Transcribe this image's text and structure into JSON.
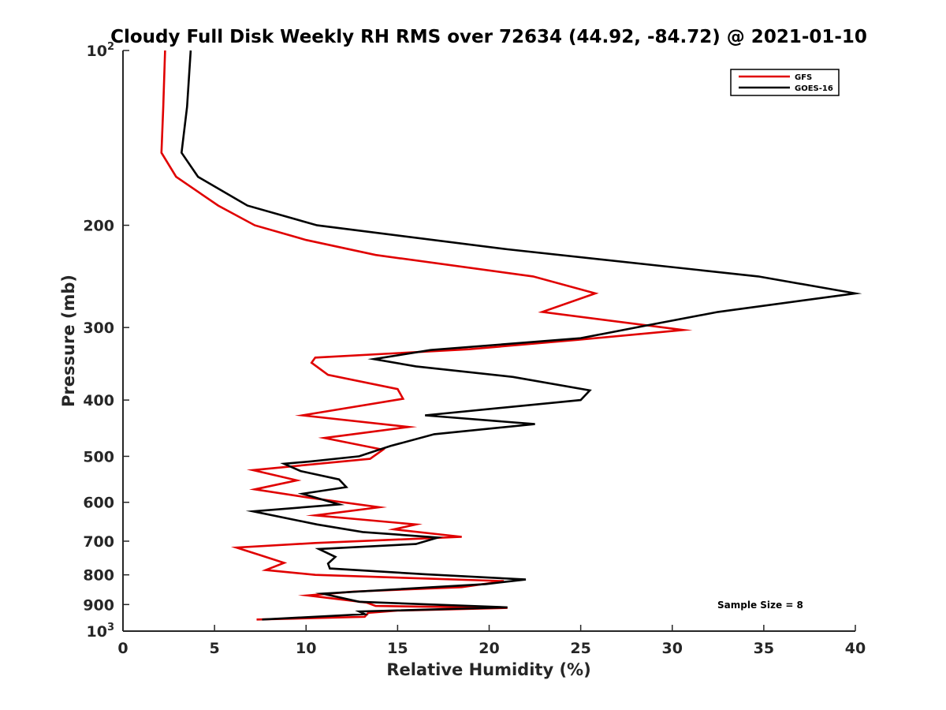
{
  "chart_data": {
    "type": "line",
    "title": "Cloudy Full Disk Weekly RH RMS over 72634 (44.92, -84.72) @ 2021-01-10",
    "xlabel": "Relative Humidity (%)",
    "ylabel": "Pressure (mb)",
    "xlim": [
      0,
      40
    ],
    "ylim": [
      100,
      1000
    ],
    "y_scale": "log",
    "y_reversed": true,
    "x_ticks": [
      "0",
      "5",
      "10",
      "15",
      "20",
      "25",
      "30",
      "35",
      "40"
    ],
    "y_ticks": [
      {
        "value": 100,
        "base": "10",
        "exp": "2"
      },
      {
        "value": 200,
        "label": "200"
      },
      {
        "value": 300,
        "label": "300"
      },
      {
        "value": 400,
        "label": "400"
      },
      {
        "value": 500,
        "label": "500"
      },
      {
        "value": 600,
        "label": "600"
      },
      {
        "value": 700,
        "label": "700"
      },
      {
        "value": 800,
        "label": "800"
      },
      {
        "value": 900,
        "label": "900"
      },
      {
        "value": 1000,
        "base": "10",
        "exp": "3"
      }
    ],
    "grid": false,
    "legend_position": "top-right",
    "annotation": "Sample Size = 8",
    "series": [
      {
        "name": "GFS",
        "color": "#e00000",
        "points": [
          [
            2.3,
            100
          ],
          [
            2.2,
            125
          ],
          [
            2.1,
            150
          ],
          [
            2.9,
            165
          ],
          [
            5.2,
            185
          ],
          [
            7.2,
            200
          ],
          [
            10.0,
            212
          ],
          [
            13.8,
            225
          ],
          [
            22.4,
            245
          ],
          [
            25.8,
            262
          ],
          [
            22.9,
            282
          ],
          [
            30.6,
            303
          ],
          [
            24.8,
            315
          ],
          [
            18.9,
            327
          ],
          [
            10.5,
            338
          ],
          [
            10.3,
            345
          ],
          [
            11.2,
            362
          ],
          [
            15.0,
            383
          ],
          [
            15.3,
            398
          ],
          [
            9.8,
            425
          ],
          [
            15.6,
            445
          ],
          [
            11.0,
            465
          ],
          [
            14.2,
            487
          ],
          [
            13.5,
            505
          ],
          [
            7.1,
            528
          ],
          [
            9.5,
            550
          ],
          [
            7.2,
            570
          ],
          [
            10.3,
            590
          ],
          [
            14.0,
            612
          ],
          [
            10.5,
            632
          ],
          [
            16.0,
            655
          ],
          [
            14.8,
            668
          ],
          [
            18.5,
            688
          ],
          [
            10.5,
            705
          ],
          [
            6.2,
            718
          ],
          [
            7.5,
            740
          ],
          [
            8.8,
            763
          ],
          [
            7.8,
            785
          ],
          [
            10.5,
            800
          ],
          [
            20.8,
            820
          ],
          [
            18.5,
            840
          ],
          [
            12.6,
            855
          ],
          [
            10.1,
            868
          ],
          [
            13.3,
            893
          ],
          [
            13.8,
            905
          ],
          [
            21.0,
            912
          ],
          [
            15.0,
            922
          ],
          [
            13.4,
            930
          ],
          [
            13.2,
            945
          ],
          [
            7.3,
            955
          ]
        ]
      },
      {
        "name": "GOES-16",
        "color": "#000000",
        "points": [
          [
            3.7,
            100
          ],
          [
            3.5,
            125
          ],
          [
            3.2,
            150
          ],
          [
            4.1,
            165
          ],
          [
            6.8,
            185
          ],
          [
            10.6,
            200
          ],
          [
            21.0,
            220
          ],
          [
            34.7,
            245
          ],
          [
            40.0,
            262
          ],
          [
            32.5,
            282
          ],
          [
            28.5,
            298
          ],
          [
            25.0,
            313
          ],
          [
            16.8,
            328
          ],
          [
            13.7,
            340
          ],
          [
            16.0,
            350
          ],
          [
            21.3,
            365
          ],
          [
            25.5,
            385
          ],
          [
            25.0,
            400
          ],
          [
            16.5,
            425
          ],
          [
            22.5,
            440
          ],
          [
            17.0,
            458
          ],
          [
            14.6,
            480
          ],
          [
            12.9,
            500
          ],
          [
            10.3,
            510
          ],
          [
            8.8,
            515
          ],
          [
            9.7,
            530
          ],
          [
            11.8,
            548
          ],
          [
            12.2,
            565
          ],
          [
            9.8,
            580
          ],
          [
            11.8,
            605
          ],
          [
            7.1,
            622
          ],
          [
            10.6,
            655
          ],
          [
            13.1,
            675
          ],
          [
            17.2,
            690
          ],
          [
            16.0,
            708
          ],
          [
            10.7,
            722
          ],
          [
            11.6,
            745
          ],
          [
            11.2,
            765
          ],
          [
            11.3,
            780
          ],
          [
            16.5,
            798
          ],
          [
            22.0,
            815
          ],
          [
            19.8,
            830
          ],
          [
            10.9,
            862
          ],
          [
            12.9,
            890
          ],
          [
            21.0,
            910
          ],
          [
            12.9,
            925
          ],
          [
            13.2,
            935
          ],
          [
            7.6,
            955
          ]
        ]
      }
    ]
  }
}
